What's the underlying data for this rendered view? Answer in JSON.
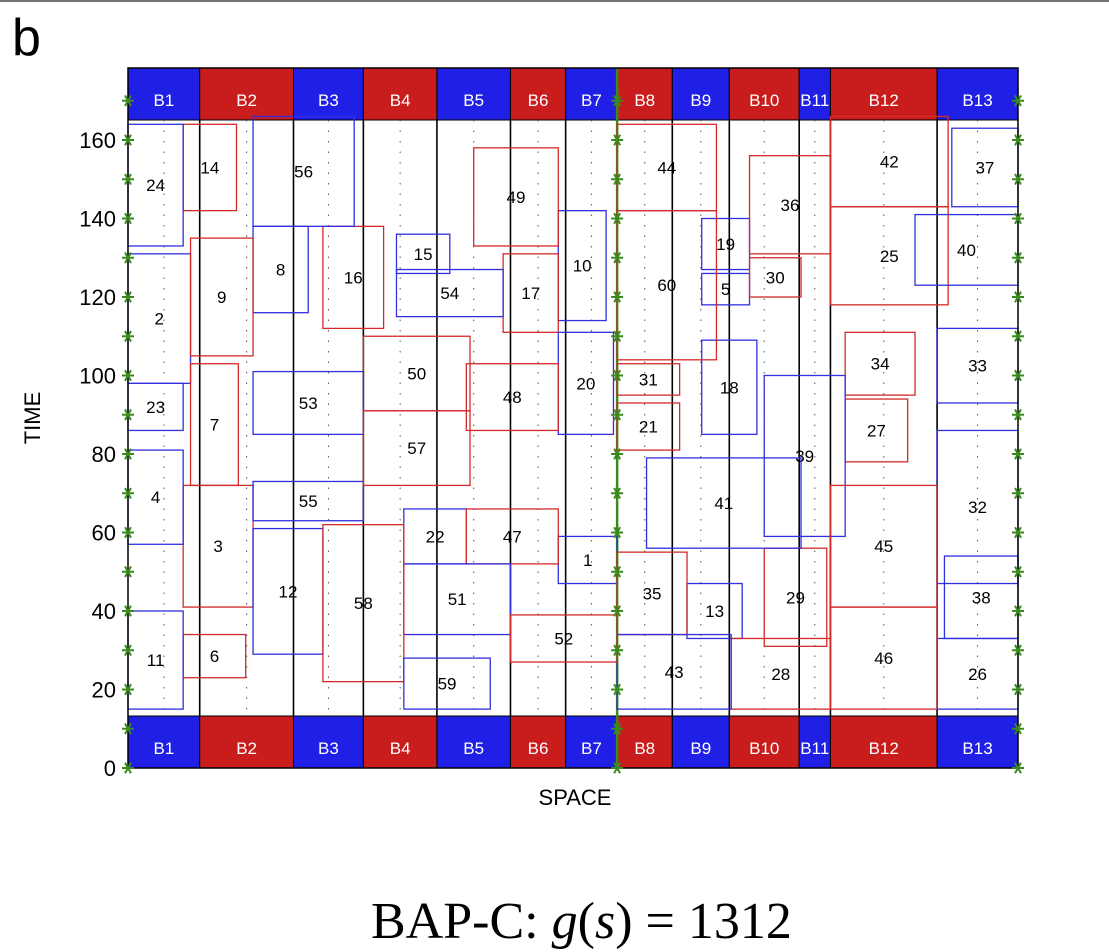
{
  "panel_label": "b",
  "caption": {
    "prefix": "BAP-C: ",
    "func": "g",
    "arg": "s",
    "equals": "= 1312"
  },
  "colors": {
    "berth_blue": "#1f1fe6",
    "berth_red": "#c91d1d",
    "vessel_blue": "#3030e0",
    "vessel_red": "#d42a2a",
    "marker_green": "#3a8a1e",
    "divider_green": "#3a8a1e"
  },
  "chart_data": {
    "type": "berth allocation diagram",
    "xlabel": "SPACE",
    "ylabel": "TIME",
    "ylim": [
      0,
      170
    ],
    "y_ticks": [
      0,
      20,
      40,
      60,
      80,
      100,
      120,
      140,
      160
    ],
    "x_range": [
      0,
      24.2
    ],
    "quay_divider_x": 13.3,
    "berths": [
      {
        "label": "B1",
        "x0": 0,
        "x1": 1.95,
        "color": "blue"
      },
      {
        "label": "B2",
        "x0": 1.95,
        "x1": 4.5,
        "color": "red"
      },
      {
        "label": "B3",
        "x0": 4.5,
        "x1": 6.4,
        "color": "blue"
      },
      {
        "label": "B4",
        "x0": 6.4,
        "x1": 8.4,
        "color": "red"
      },
      {
        "label": "B5",
        "x0": 8.4,
        "x1": 10.4,
        "color": "blue"
      },
      {
        "label": "B6",
        "x0": 10.4,
        "x1": 11.9,
        "color": "red"
      },
      {
        "label": "B7",
        "x0": 11.9,
        "x1": 13.3,
        "color": "blue"
      },
      {
        "label": "B8",
        "x0": 13.3,
        "x1": 14.8,
        "color": "red"
      },
      {
        "label": "B9",
        "x0": 14.8,
        "x1": 16.35,
        "color": "blue"
      },
      {
        "label": "B10",
        "x0": 16.35,
        "x1": 18.25,
        "color": "red"
      },
      {
        "label": "B11",
        "x0": 18.25,
        "x1": 19.1,
        "color": "blue"
      },
      {
        "label": "B12",
        "x0": 19.1,
        "x1": 22.0,
        "color": "red"
      },
      {
        "label": "B13",
        "x0": 22.0,
        "x1": 24.2,
        "color": "blue"
      }
    ],
    "vessels": [
      {
        "id": "1",
        "x0": 11.7,
        "x1": 13.3,
        "y0": 47,
        "y1": 59,
        "color": "blue"
      },
      {
        "id": "2",
        "x0": 0,
        "x1": 1.7,
        "y0": 98,
        "y1": 131,
        "color": "blue"
      },
      {
        "id": "3",
        "x0": 1.5,
        "x1": 3.4,
        "y0": 41,
        "y1": 72,
        "color": "red"
      },
      {
        "id": "4",
        "x0": 0,
        "x1": 1.5,
        "y0": 57,
        "y1": 81,
        "color": "blue"
      },
      {
        "id": "5",
        "x0": 15.6,
        "x1": 16.9,
        "y0": 118,
        "y1": 126,
        "color": "blue"
      },
      {
        "id": "6",
        "x0": 1.5,
        "x1": 3.2,
        "y0": 23,
        "y1": 34,
        "color": "red"
      },
      {
        "id": "7",
        "x0": 1.7,
        "x1": 3.0,
        "y0": 72,
        "y1": 103,
        "color": "red"
      },
      {
        "id": "8",
        "x0": 3.4,
        "x1": 4.9,
        "y0": 116,
        "y1": 138,
        "color": "blue"
      },
      {
        "id": "9",
        "x0": 1.7,
        "x1": 3.4,
        "y0": 105,
        "y1": 135,
        "color": "red"
      },
      {
        "id": "10",
        "x0": 11.7,
        "x1": 13.0,
        "y0": 114,
        "y1": 142,
        "color": "blue"
      },
      {
        "id": "11",
        "x0": 0,
        "x1": 1.5,
        "y0": 15,
        "y1": 40,
        "color": "blue"
      },
      {
        "id": "12",
        "x0": 3.4,
        "x1": 5.3,
        "y0": 29,
        "y1": 61,
        "color": "blue"
      },
      {
        "id": "13",
        "x0": 15.2,
        "x1": 16.7,
        "y0": 33,
        "y1": 47,
        "color": "blue"
      },
      {
        "id": "14",
        "x0": 1.5,
        "x1": 2.95,
        "y0": 142,
        "y1": 164,
        "color": "red"
      },
      {
        "id": "15",
        "x0": 7.3,
        "x1": 8.75,
        "y0": 126,
        "y1": 136,
        "color": "blue"
      },
      {
        "id": "16",
        "x0": 5.3,
        "x1": 6.95,
        "y0": 112,
        "y1": 138,
        "color": "red"
      },
      {
        "id": "17",
        "x0": 10.2,
        "x1": 11.7,
        "y0": 111,
        "y1": 131,
        "color": "red"
      },
      {
        "id": "18",
        "x0": 15.6,
        "x1": 17.1,
        "y0": 85,
        "y1": 109,
        "color": "blue"
      },
      {
        "id": "19",
        "x0": 15.6,
        "x1": 16.9,
        "y0": 127,
        "y1": 140,
        "color": "blue"
      },
      {
        "id": "20",
        "x0": 11.7,
        "x1": 13.2,
        "y0": 85,
        "y1": 111,
        "color": "blue"
      },
      {
        "id": "21",
        "x0": 13.3,
        "x1": 15.0,
        "y0": 81,
        "y1": 93,
        "color": "red"
      },
      {
        "id": "22",
        "x0": 7.5,
        "x1": 9.2,
        "y0": 52,
        "y1": 66,
        "color": "blue"
      },
      {
        "id": "23",
        "x0": 0,
        "x1": 1.5,
        "y0": 86,
        "y1": 98,
        "color": "blue"
      },
      {
        "id": "24",
        "x0": 0,
        "x1": 1.5,
        "y0": 133,
        "y1": 164,
        "color": "blue"
      },
      {
        "id": "25",
        "x0": 19.1,
        "x1": 22.3,
        "y0": 118,
        "y1": 143,
        "color": "red"
      },
      {
        "id": "26",
        "x0": 22.0,
        "x1": 24.2,
        "y0": 15,
        "y1": 33,
        "color": "blue"
      },
      {
        "id": "27",
        "x0": 19.5,
        "x1": 21.2,
        "y0": 78,
        "y1": 94,
        "color": "red"
      },
      {
        "id": "28",
        "x0": 16.4,
        "x1": 19.1,
        "y0": 15,
        "y1": 33,
        "color": "red"
      },
      {
        "id": "29",
        "x0": 17.3,
        "x1": 19.0,
        "y0": 31,
        "y1": 56,
        "color": "red"
      },
      {
        "id": "30",
        "x0": 16.9,
        "x1": 18.3,
        "y0": 120,
        "y1": 130,
        "color": "red"
      },
      {
        "id": "31",
        "x0": 13.3,
        "x1": 15.0,
        "y0": 95,
        "y1": 103,
        "color": "red"
      },
      {
        "id": "32",
        "x0": 22.0,
        "x1": 24.2,
        "y0": 47,
        "y1": 86,
        "color": "blue"
      },
      {
        "id": "33",
        "x0": 22.0,
        "x1": 24.2,
        "y0": 93,
        "y1": 112,
        "color": "blue"
      },
      {
        "id": "34",
        "x0": 19.5,
        "x1": 21.4,
        "y0": 95,
        "y1": 111,
        "color": "red"
      },
      {
        "id": "35",
        "x0": 13.3,
        "x1": 15.2,
        "y0": 34,
        "y1": 55,
        "color": "red"
      },
      {
        "id": "36",
        "x0": 16.9,
        "x1": 19.1,
        "y0": 131,
        "y1": 156,
        "color": "red"
      },
      {
        "id": "37",
        "x0": 22.4,
        "x1": 24.2,
        "y0": 143,
        "y1": 163,
        "color": "blue"
      },
      {
        "id": "38",
        "x0": 22.2,
        "x1": 24.2,
        "y0": 33,
        "y1": 54,
        "color": "blue"
      },
      {
        "id": "39",
        "x0": 17.3,
        "x1": 19.5,
        "y0": 59,
        "y1": 100,
        "color": "blue"
      },
      {
        "id": "40",
        "x0": 21.4,
        "x1": 24.2,
        "y0": 123,
        "y1": 141,
        "color": "blue"
      },
      {
        "id": "41",
        "x0": 14.1,
        "x1": 18.3,
        "y0": 56,
        "y1": 79,
        "color": "blue"
      },
      {
        "id": "42",
        "x0": 19.1,
        "x1": 22.3,
        "y0": 143,
        "y1": 166,
        "color": "red"
      },
      {
        "id": "43",
        "x0": 13.3,
        "x1": 16.4,
        "y0": 15,
        "y1": 34,
        "color": "blue"
      },
      {
        "id": "44",
        "x0": 13.3,
        "x1": 16.0,
        "y0": 142,
        "y1": 164,
        "color": "red"
      },
      {
        "id": "45",
        "x0": 19.1,
        "x1": 22.0,
        "y0": 41,
        "y1": 72,
        "color": "red"
      },
      {
        "id": "46",
        "x0": 19.1,
        "x1": 22.0,
        "y0": 15,
        "y1": 41,
        "color": "red"
      },
      {
        "id": "47",
        "x0": 9.2,
        "x1": 11.7,
        "y0": 52,
        "y1": 66,
        "color": "red"
      },
      {
        "id": "48",
        "x0": 9.2,
        "x1": 11.7,
        "y0": 86,
        "y1": 103,
        "color": "red"
      },
      {
        "id": "49",
        "x0": 9.4,
        "x1": 11.7,
        "y0": 133,
        "y1": 158,
        "color": "red"
      },
      {
        "id": "50",
        "x0": 6.4,
        "x1": 9.3,
        "y0": 91,
        "y1": 110,
        "color": "red"
      },
      {
        "id": "51",
        "x0": 7.5,
        "x1": 10.4,
        "y0": 34,
        "y1": 52,
        "color": "blue"
      },
      {
        "id": "52",
        "x0": 10.4,
        "x1": 13.3,
        "y0": 27,
        "y1": 39,
        "color": "red"
      },
      {
        "id": "53",
        "x0": 3.4,
        "x1": 6.4,
        "y0": 85,
        "y1": 101,
        "color": "blue"
      },
      {
        "id": "54",
        "x0": 7.3,
        "x1": 10.2,
        "y0": 115,
        "y1": 127,
        "color": "blue"
      },
      {
        "id": "55",
        "x0": 3.4,
        "x1": 6.4,
        "y0": 63,
        "y1": 73,
        "color": "blue"
      },
      {
        "id": "56",
        "x0": 3.4,
        "x1": 6.15,
        "y0": 138,
        "y1": 166,
        "color": "blue"
      },
      {
        "id": "57",
        "x0": 6.4,
        "x1": 9.3,
        "y0": 72,
        "y1": 91,
        "color": "red"
      },
      {
        "id": "58",
        "x0": 5.3,
        "x1": 7.5,
        "y0": 22,
        "y1": 62,
        "color": "red"
      },
      {
        "id": "59",
        "x0": 7.5,
        "x1": 9.85,
        "y0": 15,
        "y1": 28,
        "color": "blue"
      },
      {
        "id": "60",
        "x0": 13.3,
        "x1": 16.0,
        "y0": 104,
        "y1": 142,
        "color": "red"
      }
    ]
  }
}
